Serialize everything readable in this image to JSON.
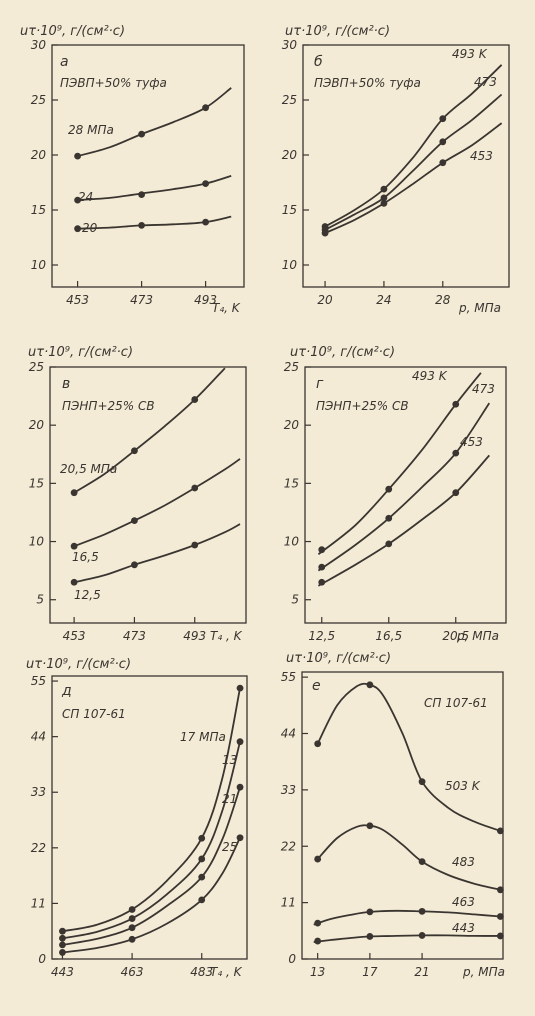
{
  "chart_data": [
    {
      "id": "a",
      "type": "line",
      "panel_letter": "а",
      "material": "ПЭВП+50% туфа",
      "ylabel": "uτ·10⁹, г/(см²·с)",
      "xlabel": "T₄, K",
      "xlim": [
        445,
        505
      ],
      "ylim": [
        8,
        30
      ],
      "xticks": [
        453,
        473,
        493
      ],
      "xtick_labels": [
        "453",
        "473",
        "493"
      ],
      "yticks": [
        10,
        15,
        20,
        25,
        30
      ],
      "grid": false,
      "series": [
        {
          "name": "28 МПа",
          "x": [
            453,
            473,
            493
          ],
          "y": [
            19.9,
            21.9,
            24.3
          ],
          "curve_x": [
            453,
            463,
            473,
            483,
            493,
            501
          ],
          "curve_y": [
            19.9,
            20.7,
            21.9,
            23.0,
            24.3,
            26.1
          ]
        },
        {
          "name": "24",
          "x": [
            453,
            473,
            493
          ],
          "y": [
            15.9,
            16.4,
            17.4
          ],
          "curve_x": [
            453,
            463,
            473,
            483,
            493,
            501
          ],
          "curve_y": [
            15.9,
            16.1,
            16.5,
            16.9,
            17.4,
            18.1
          ]
        },
        {
          "name": "20",
          "x": [
            453,
            473,
            493
          ],
          "y": [
            13.3,
            13.6,
            13.9
          ],
          "curve_x": [
            453,
            463,
            473,
            483,
            493,
            501
          ],
          "curve_y": [
            13.3,
            13.4,
            13.6,
            13.7,
            13.9,
            14.4
          ]
        }
      ]
    },
    {
      "id": "b",
      "type": "line",
      "panel_letter": "б",
      "material": "ПЭВП+50% туфа",
      "ylabel": "uτ·10⁹, г/(см²·с)",
      "xlabel": "p, МПа",
      "xlim": [
        18.5,
        32.5
      ],
      "ylim": [
        8,
        30
      ],
      "xticks": [
        20,
        24,
        28
      ],
      "xtick_labels": [
        "20",
        "24",
        "28"
      ],
      "yticks": [
        10,
        15,
        20,
        25,
        30
      ],
      "grid": false,
      "series": [
        {
          "name": "493 K",
          "x": [
            20,
            24,
            28
          ],
          "y": [
            13.5,
            16.9,
            23.3
          ],
          "curve_x": [
            20,
            22,
            24,
            26,
            28,
            30,
            32
          ],
          "curve_y": [
            13.5,
            15.0,
            16.9,
            19.8,
            23.3,
            25.6,
            28.2
          ]
        },
        {
          "name": "473",
          "x": [
            20,
            24,
            28
          ],
          "y": [
            13.2,
            16.1,
            21.2
          ],
          "curve_x": [
            20,
            22,
            24,
            26,
            28,
            30,
            32
          ],
          "curve_y": [
            13.2,
            14.6,
            16.1,
            18.6,
            21.2,
            23.2,
            25.5
          ]
        },
        {
          "name": "453",
          "x": [
            20,
            24,
            28
          ],
          "y": [
            12.9,
            15.6,
            19.3
          ],
          "curve_x": [
            20,
            22,
            24,
            26,
            28,
            30,
            32
          ],
          "curve_y": [
            12.9,
            14.1,
            15.6,
            17.4,
            19.3,
            20.9,
            22.9
          ]
        }
      ]
    },
    {
      "id": "v",
      "type": "line",
      "panel_letter": "в",
      "material": "ПЭНП+25% СВ",
      "ylabel": "uτ·10⁹, г/(см²·с)",
      "xlabel": "T₄ , K",
      "xlim": [
        445,
        510
      ],
      "ylim": [
        3,
        25
      ],
      "xticks": [
        453,
        473,
        493
      ],
      "xtick_labels": [
        "453",
        "473",
        "493"
      ],
      "yticks": [
        5,
        10,
        15,
        20,
        25
      ],
      "grid": false,
      "series": [
        {
          "name": "20,5 МПа",
          "x": [
            453,
            473,
            493
          ],
          "y": [
            14.2,
            17.8,
            22.2
          ],
          "curve_x": [
            453,
            463,
            473,
            483,
            493,
            503
          ],
          "curve_y": [
            14.2,
            15.8,
            17.8,
            19.9,
            22.2,
            24.9
          ]
        },
        {
          "name": "16,5",
          "x": [
            453,
            473,
            493
          ],
          "y": [
            9.6,
            11.8,
            14.6
          ],
          "curve_x": [
            453,
            463,
            473,
            483,
            493,
            503,
            508
          ],
          "curve_y": [
            9.6,
            10.6,
            11.8,
            13.1,
            14.6,
            16.2,
            17.1
          ]
        },
        {
          "name": "12,5",
          "x": [
            453,
            473,
            493
          ],
          "y": [
            6.5,
            8.0,
            9.7
          ],
          "curve_x": [
            453,
            463,
            473,
            483,
            493,
            503,
            508
          ],
          "curve_y": [
            6.5,
            7.1,
            8.0,
            8.8,
            9.7,
            10.8,
            11.5
          ]
        }
      ]
    },
    {
      "id": "g",
      "type": "line",
      "panel_letter": "г",
      "material": "ПЭНП+25% СВ",
      "ylabel": "uτ·10⁹, г/(см²·с)",
      "xlabel": "p, МПа",
      "xlim": [
        11.5,
        23.5
      ],
      "ylim": [
        3,
        25
      ],
      "xticks": [
        12.5,
        16.5,
        20.5
      ],
      "xtick_labels": [
        "12,5",
        "16,5",
        "20,5"
      ],
      "yticks": [
        5,
        10,
        15,
        20,
        25
      ],
      "grid": false,
      "series": [
        {
          "name": "493 K",
          "x": [
            12.5,
            16.5,
            20.5
          ],
          "y": [
            9.3,
            14.5,
            21.8
          ],
          "curve_x": [
            12.3,
            14.5,
            16.5,
            18.5,
            20.5,
            22.0
          ],
          "curve_y": [
            8.9,
            11.4,
            14.5,
            17.9,
            21.8,
            24.5
          ]
        },
        {
          "name": "473",
          "x": [
            12.5,
            16.5,
            20.5
          ],
          "y": [
            7.8,
            12.0,
            17.6
          ],
          "curve_x": [
            12.3,
            14.5,
            16.5,
            18.5,
            20.5,
            22.5
          ],
          "curve_y": [
            7.5,
            9.7,
            12.0,
            14.7,
            17.6,
            21.9
          ]
        },
        {
          "name": "453",
          "x": [
            12.5,
            16.5,
            20.5
          ],
          "y": [
            6.5,
            9.8,
            14.2
          ],
          "curve_x": [
            12.3,
            14.5,
            16.5,
            18.5,
            20.5,
            22.5
          ],
          "curve_y": [
            6.2,
            8.0,
            9.8,
            11.9,
            14.2,
            17.4
          ]
        }
      ]
    },
    {
      "id": "d",
      "type": "line",
      "panel_letter": "д",
      "material": "СП 107-61",
      "ylabel": "uτ·10⁹, г/(см²·с)",
      "xlabel": "T₄ , K",
      "xlim": [
        440,
        496
      ],
      "ylim": [
        0,
        56
      ],
      "xticks": [
        443,
        463,
        483
      ],
      "xtick_labels": [
        "443",
        "463",
        "483"
      ],
      "yticks": [
        0,
        11,
        22,
        33,
        44,
        55
      ],
      "grid": false,
      "series": [
        {
          "name": "17 МПа",
          "x": [
            443,
            463,
            483,
            494
          ],
          "y": [
            5.5,
            9.8,
            23.9,
            53.6
          ],
          "curve_x": [
            443,
            453,
            463,
            473,
            483,
            489,
            494
          ],
          "curve_y": [
            5.5,
            6.8,
            9.8,
            15.5,
            23.9,
            36.0,
            53.6
          ]
        },
        {
          "name": "13",
          "x": [
            443,
            463,
            483,
            494
          ],
          "y": [
            4.1,
            8.0,
            19.8,
            43.0
          ],
          "curve_x": [
            443,
            453,
            463,
            473,
            483,
            489,
            494
          ],
          "curve_y": [
            4.1,
            5.4,
            8.0,
            12.8,
            19.8,
            29.5,
            43.0
          ]
        },
        {
          "name": "21",
          "x": [
            443,
            463,
            483,
            494
          ],
          "y": [
            2.8,
            6.2,
            16.2,
            34.0
          ],
          "curve_x": [
            443,
            453,
            463,
            473,
            483,
            489,
            494
          ],
          "curve_y": [
            2.8,
            4.0,
            6.2,
            10.5,
            16.2,
            23.8,
            34.0
          ]
        },
        {
          "name": "25",
          "x": [
            443,
            463,
            483,
            494
          ],
          "y": [
            1.3,
            3.9,
            11.7,
            24.0
          ],
          "curve_x": [
            443,
            453,
            463,
            473,
            483,
            489,
            494
          ],
          "curve_y": [
            1.3,
            2.2,
            3.9,
            7.0,
            11.7,
            17.0,
            24.0
          ]
        }
      ]
    },
    {
      "id": "e",
      "type": "line",
      "panel_letter": "е",
      "material": "СП 107-61",
      "ylabel": "uτ·10⁹, г/(см²·с)",
      "xlabel": "p, МПа",
      "xlim": [
        11.8,
        27.2
      ],
      "ylim": [
        0,
        56
      ],
      "xticks": [
        13,
        17,
        21
      ],
      "xtick_labels": [
        "13",
        "17",
        "21"
      ],
      "yticks": [
        0,
        11,
        22,
        33,
        44,
        55
      ],
      "grid": false,
      "series": [
        {
          "name": "503 K",
          "x": [
            13,
            17,
            21,
            27
          ],
          "y": [
            42.0,
            53.5,
            34.6,
            25.0
          ],
          "curve_x": [
            13,
            14.5,
            16,
            17,
            18,
            19.5,
            21,
            23,
            25,
            27
          ],
          "curve_y": [
            42.0,
            49.5,
            53.2,
            53.5,
            51.5,
            44.0,
            34.6,
            29.5,
            26.8,
            25.0
          ]
        },
        {
          "name": "483",
          "x": [
            13,
            17,
            21,
            27
          ],
          "y": [
            19.5,
            26.0,
            19.0,
            13.5
          ],
          "curve_x": [
            13,
            14.5,
            16,
            17,
            18,
            19.5,
            21,
            23,
            25,
            27
          ],
          "curve_y": [
            19.5,
            23.6,
            25.8,
            26.0,
            25.2,
            22.3,
            19.0,
            16.4,
            14.7,
            13.5
          ]
        },
        {
          "name": "463",
          "x": [
            13,
            17,
            21,
            27
          ],
          "y": [
            7.0,
            9.2,
            9.3,
            8.3
          ],
          "curve_x": [
            12.7,
            14,
            15.5,
            17,
            19,
            21,
            23,
            25,
            27
          ],
          "curve_y": [
            6.7,
            7.8,
            8.6,
            9.2,
            9.4,
            9.3,
            9.1,
            8.7,
            8.3
          ]
        },
        {
          "name": "443",
          "x": [
            13,
            17,
            21,
            27
          ],
          "y": [
            3.5,
            4.4,
            4.6,
            4.5
          ],
          "curve_x": [
            12.7,
            14,
            15.5,
            17,
            19,
            21,
            23,
            25,
            27
          ],
          "curve_y": [
            3.3,
            3.7,
            4.1,
            4.4,
            4.5,
            4.6,
            4.6,
            4.5,
            4.5
          ]
        }
      ]
    }
  ]
}
